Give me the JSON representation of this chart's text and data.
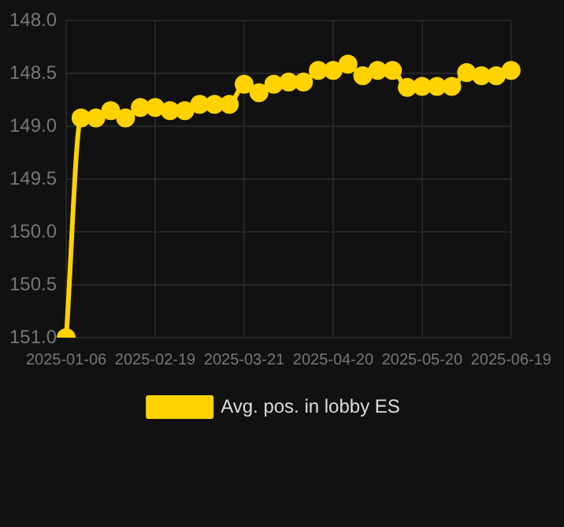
{
  "chart_data": {
    "type": "line",
    "categories": [
      "2025-01-06",
      null,
      null,
      null,
      null,
      null,
      "2025-02-19",
      null,
      null,
      null,
      null,
      null,
      "2025-03-21",
      null,
      null,
      null,
      null,
      null,
      "2025-04-20",
      null,
      null,
      null,
      null,
      null,
      "2025-05-20",
      null,
      null,
      null,
      null,
      null,
      "2025-06-19"
    ],
    "series": [
      {
        "name": "Avg. pos. in lobby ES",
        "color": "#ffd200",
        "values": [
          151.0,
          148.92,
          148.92,
          148.85,
          148.92,
          148.82,
          148.82,
          148.85,
          148.85,
          148.79,
          148.79,
          148.79,
          148.6,
          148.68,
          148.6,
          148.58,
          148.58,
          148.47,
          148.47,
          148.41,
          148.52,
          148.47,
          148.47,
          148.63,
          148.62,
          148.62,
          148.62,
          148.49,
          148.52,
          148.52,
          148.47
        ]
      }
    ],
    "ylim": [
      151.0,
      148.0
    ],
    "yticks": [
      {
        "value": 148,
        "label": "148.0"
      },
      {
        "value": 148.5,
        "label": "148.5"
      },
      {
        "value": 149,
        "label": "149.0"
      },
      {
        "value": 149.5,
        "label": "149.5"
      },
      {
        "value": 150,
        "label": "150.0"
      },
      {
        "value": 150.5,
        "label": "150.5"
      },
      {
        "value": 151,
        "label": "151.0"
      }
    ],
    "grid": true,
    "legend": "bottom",
    "marker": "circle",
    "line_style": "solid"
  }
}
